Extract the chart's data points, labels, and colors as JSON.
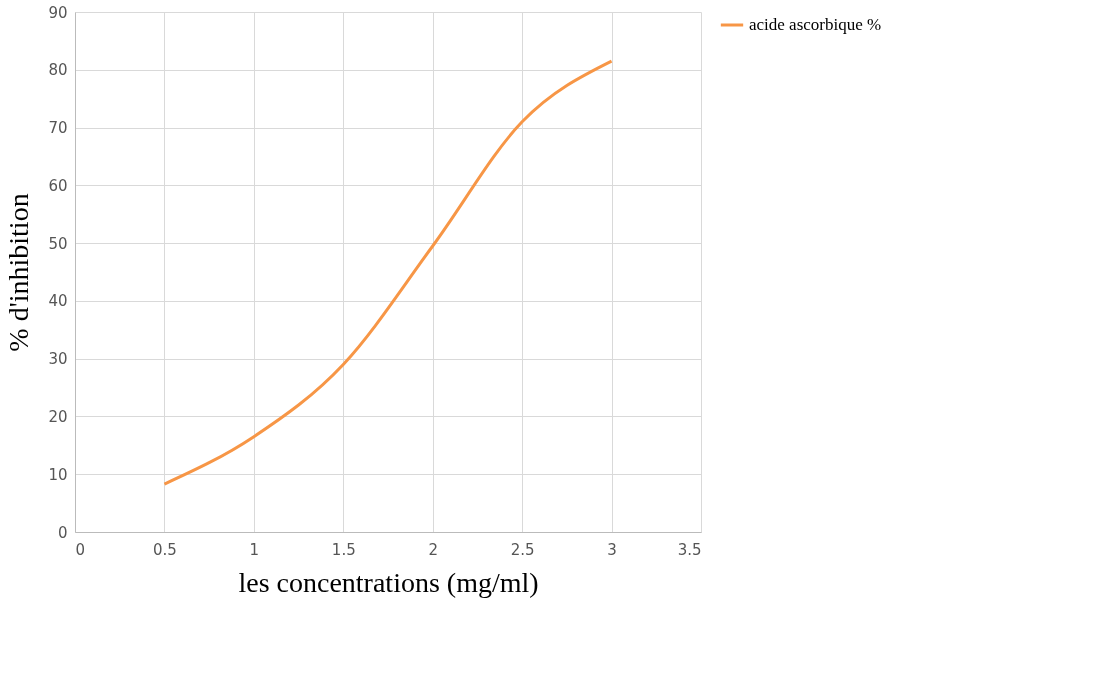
{
  "chart_data": {
    "type": "line",
    "xlabel": "les concentrations (mg/ml)",
    "ylabel": "%   d'inhibition",
    "x": [
      0.5,
      1,
      1.5,
      2,
      2.5,
      3
    ],
    "series": [
      {
        "name": "acide ascorbique %",
        "color": "#f79646",
        "values": [
          8.3,
          16.5,
          29,
          49.5,
          71,
          81.5
        ]
      }
    ],
    "xlim": [
      0,
      3.5
    ],
    "xticks": [
      0,
      0.5,
      1,
      1.5,
      2,
      2.5,
      3,
      3.5
    ],
    "ylim": [
      0,
      90
    ],
    "yticks": [
      0,
      10,
      20,
      30,
      40,
      50,
      60,
      70,
      80,
      90
    ],
    "grid": true,
    "legend": "right",
    "marker": "none",
    "line_style": "solid"
  }
}
